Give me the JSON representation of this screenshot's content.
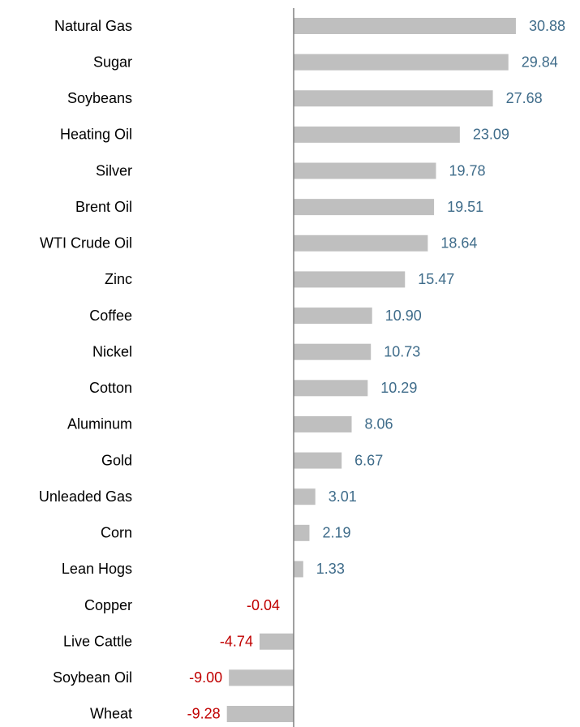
{
  "chart_data": {
    "type": "bar",
    "orientation": "horizontal",
    "categories": [
      "Natural Gas",
      "Sugar",
      "Soybeans",
      "Heating Oil",
      "Silver",
      "Brent Oil",
      "WTI Crude Oil",
      "Zinc",
      "Coffee",
      "Nickel",
      "Cotton",
      "Aluminum",
      "Gold",
      "Unleaded Gas",
      "Corn",
      "Lean Hogs",
      "Copper",
      "Live Cattle",
      "Soybean Oil",
      "Wheat"
    ],
    "values": [
      30.88,
      29.84,
      27.68,
      23.09,
      19.78,
      19.51,
      18.64,
      15.47,
      10.9,
      10.73,
      10.29,
      8.06,
      6.67,
      3.01,
      2.19,
      1.33,
      -0.04,
      -4.74,
      -9.0,
      -9.28
    ],
    "value_labels": [
      "30.88",
      "29.84",
      "27.68",
      "23.09",
      "19.78",
      "19.51",
      "18.64",
      "15.47",
      "10.90",
      "10.73",
      "10.29",
      "8.06",
      "6.67",
      "3.01",
      "2.19",
      "1.33",
      "-0.04",
      "-4.74",
      "-9.00",
      "-9.28"
    ],
    "color": "#bfbfbf",
    "positive_label_color": "#3f6c8a",
    "negative_label_color": "#c00000",
    "xlim": [
      -10,
      35
    ]
  }
}
